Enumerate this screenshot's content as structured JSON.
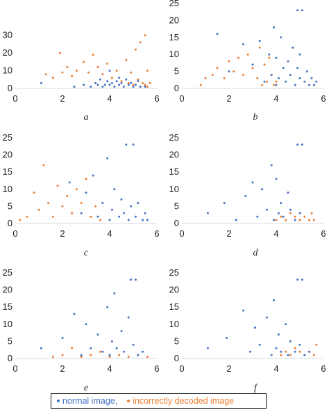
{
  "chart_data": [
    {
      "type": "scatter",
      "panel_label": "a",
      "xlim": [
        0,
        6
      ],
      "ylim": [
        0,
        35
      ],
      "yticks": [
        0,
        10,
        20,
        30
      ],
      "xticks": [
        0,
        2,
        4,
        6
      ],
      "grid": false,
      "series": [
        {
          "name": "normal image,",
          "color": "#4472C4",
          "points": [
            [
              1.1,
              3
            ],
            [
              2.5,
              1
            ],
            [
              2.9,
              2
            ],
            [
              3.2,
              1
            ],
            [
              3.4,
              3
            ],
            [
              3.5,
              2
            ],
            [
              3.6,
              5
            ],
            [
              3.7,
              1
            ],
            [
              3.8,
              2
            ],
            [
              3.9,
              4
            ],
            [
              4.0,
              2
            ],
            [
              4.0,
              10
            ],
            [
              4.1,
              3
            ],
            [
              4.2,
              1
            ],
            [
              4.3,
              4
            ],
            [
              4.4,
              6
            ],
            [
              4.4,
              2
            ],
            [
              4.5,
              3
            ],
            [
              4.6,
              1
            ],
            [
              4.7,
              5
            ],
            [
              4.8,
              2
            ],
            [
              4.9,
              3
            ],
            [
              5.0,
              1
            ],
            [
              5.1,
              2
            ],
            [
              5.2,
              4
            ],
            [
              5.3,
              1
            ],
            [
              5.5,
              1
            ]
          ]
        },
        {
          "name": "incorrectly decoded image",
          "color": "#ED7D31",
          "points": [
            [
              1.3,
              8
            ],
            [
              1.6,
              6
            ],
            [
              1.9,
              20
            ],
            [
              2.0,
              9
            ],
            [
              2.2,
              12
            ],
            [
              2.4,
              7
            ],
            [
              2.6,
              10
            ],
            [
              2.9,
              15
            ],
            [
              3.1,
              9
            ],
            [
              3.3,
              19
            ],
            [
              3.5,
              12
            ],
            [
              3.7,
              8
            ],
            [
              3.9,
              14
            ],
            [
              4.1,
              6
            ],
            [
              4.3,
              10
            ],
            [
              4.5,
              4
            ],
            [
              4.7,
              16
            ],
            [
              4.8,
              3
            ],
            [
              4.9,
              9
            ],
            [
              5.0,
              2
            ],
            [
              5.1,
              22
            ],
            [
              5.2,
              5
            ],
            [
              5.3,
              1
            ],
            [
              5.3,
              26
            ],
            [
              5.4,
              3
            ],
            [
              5.5,
              30
            ],
            [
              5.5,
              2
            ],
            [
              5.6,
              10
            ],
            [
              5.6,
              1
            ],
            [
              5.7,
              3
            ]
          ]
        }
      ]
    },
    {
      "type": "scatter",
      "panel_label": "b",
      "xlim": [
        0,
        6
      ],
      "ylim": [
        0,
        25
      ],
      "yticks": [
        0,
        5,
        10,
        15,
        20,
        25
      ],
      "xticks": [
        0,
        2,
        4,
        6
      ],
      "grid": false,
      "series": [
        {
          "name": "normal image,",
          "color": "#4472C4",
          "points": [
            [
              1.5,
              16
            ],
            [
              2.0,
              5
            ],
            [
              2.6,
              13
            ],
            [
              3.0,
              7
            ],
            [
              3.3,
              14
            ],
            [
              3.5,
              2
            ],
            [
              3.7,
              10
            ],
            [
              3.8,
              4
            ],
            [
              3.9,
              18
            ],
            [
              4.0,
              1
            ],
            [
              4.0,
              9
            ],
            [
              4.1,
              3
            ],
            [
              4.2,
              15
            ],
            [
              4.3,
              6
            ],
            [
              4.4,
              2
            ],
            [
              4.5,
              8
            ],
            [
              4.6,
              4
            ],
            [
              4.7,
              12
            ],
            [
              4.8,
              1
            ],
            [
              4.9,
              6
            ],
            [
              4.9,
              23
            ],
            [
              5.0,
              3
            ],
            [
              5.0,
              10
            ],
            [
              5.1,
              23
            ],
            [
              5.2,
              2
            ],
            [
              5.3,
              5
            ],
            [
              5.4,
              1
            ],
            [
              5.5,
              3
            ],
            [
              5.6,
              1
            ],
            [
              5.7,
              2
            ]
          ]
        },
        {
          "name": "incorrectly decoded image",
          "color": "#ED7D31",
          "points": [
            [
              0.8,
              1
            ],
            [
              1.0,
              3
            ],
            [
              1.3,
              4
            ],
            [
              1.5,
              6
            ],
            [
              1.8,
              3
            ],
            [
              2.0,
              8
            ],
            [
              2.2,
              5
            ],
            [
              2.4,
              9
            ],
            [
              2.6,
              4
            ],
            [
              2.8,
              10
            ],
            [
              3.0,
              6
            ],
            [
              3.2,
              3
            ],
            [
              3.3,
              12
            ],
            [
              3.4,
              1
            ],
            [
              3.5,
              7
            ],
            [
              3.6,
              2
            ],
            [
              3.7,
              9
            ],
            [
              3.8,
              4
            ],
            [
              3.9,
              1
            ],
            [
              4.0,
              2
            ]
          ]
        }
      ]
    },
    {
      "type": "scatter",
      "panel_label": "c",
      "xlim": [
        0,
        6
      ],
      "ylim": [
        0,
        25
      ],
      "yticks": [
        0,
        5,
        10,
        15,
        20,
        25
      ],
      "xticks": [
        0,
        2,
        4,
        6
      ],
      "grid": false,
      "series": [
        {
          "name": "normal image,",
          "color": "#4472C4",
          "points": [
            [
              2.3,
              12
            ],
            [
              2.8,
              3
            ],
            [
              3.0,
              9
            ],
            [
              3.3,
              14
            ],
            [
              3.5,
              2
            ],
            [
              3.7,
              6
            ],
            [
              3.9,
              19
            ],
            [
              4.0,
              1
            ],
            [
              4.1,
              4
            ],
            [
              4.2,
              10
            ],
            [
              4.4,
              2
            ],
            [
              4.5,
              7
            ],
            [
              4.6,
              3
            ],
            [
              4.7,
              23
            ],
            [
              4.8,
              1
            ],
            [
              4.9,
              5
            ],
            [
              5.0,
              23
            ],
            [
              5.1,
              2
            ],
            [
              5.2,
              6
            ],
            [
              5.4,
              1
            ],
            [
              5.5,
              3
            ],
            [
              5.6,
              1
            ]
          ]
        },
        {
          "name": "incorrectly decoded image",
          "color": "#ED7D31",
          "points": [
            [
              0.2,
              1
            ],
            [
              0.5,
              2
            ],
            [
              0.8,
              9
            ],
            [
              1.0,
              4
            ],
            [
              1.2,
              17
            ],
            [
              1.4,
              6
            ],
            [
              1.6,
              2
            ],
            [
              1.8,
              11
            ],
            [
              2.0,
              5
            ],
            [
              2.2,
              8
            ],
            [
              2.4,
              3
            ],
            [
              2.6,
              10
            ],
            [
              2.8,
              6
            ],
            [
              3.0,
              13
            ],
            [
              3.2,
              2
            ],
            [
              3.4,
              5
            ],
            [
              3.6,
              1
            ]
          ]
        }
      ]
    },
    {
      "type": "scatter",
      "panel_label": "d",
      "xlim": [
        0,
        6
      ],
      "ylim": [
        0,
        25
      ],
      "yticks": [
        0,
        5,
        10,
        15,
        20,
        25
      ],
      "xticks": [
        0,
        2,
        4,
        6
      ],
      "grid": false,
      "series": [
        {
          "name": "normal image,",
          "color": "#4472C4",
          "points": [
            [
              1.1,
              3
            ],
            [
              1.8,
              6
            ],
            [
              2.3,
              1
            ],
            [
              2.7,
              8
            ],
            [
              3.0,
              12
            ],
            [
              3.2,
              2
            ],
            [
              3.4,
              10
            ],
            [
              3.6,
              4
            ],
            [
              3.8,
              17
            ],
            [
              3.9,
              1
            ],
            [
              4.0,
              13
            ],
            [
              4.1,
              3
            ],
            [
              4.2,
              6
            ],
            [
              4.3,
              2
            ],
            [
              4.5,
              9
            ],
            [
              4.6,
              4
            ],
            [
              4.8,
              1
            ],
            [
              4.9,
              23
            ],
            [
              5.0,
              3
            ],
            [
              5.1,
              23
            ]
          ]
        },
        {
          "name": "incorrectly decoded image",
          "color": "#ED7D31",
          "points": [
            [
              4.0,
              1
            ],
            [
              4.2,
              2
            ],
            [
              4.4,
              1
            ],
            [
              4.6,
              3
            ],
            [
              4.8,
              2
            ],
            [
              5.0,
              1
            ],
            [
              5.2,
              2
            ],
            [
              5.4,
              1
            ],
            [
              5.5,
              3
            ],
            [
              5.6,
              1
            ]
          ]
        }
      ]
    },
    {
      "type": "scatter",
      "panel_label": "e",
      "xlim": [
        0,
        6
      ],
      "ylim": [
        0,
        25
      ],
      "yticks": [
        0,
        5,
        10,
        15,
        20,
        25
      ],
      "xticks": [
        0,
        2,
        4,
        6
      ],
      "grid": false,
      "series": [
        {
          "name": "normal image,",
          "color": "#4472C4",
          "points": [
            [
              1.1,
              3
            ],
            [
              2.0,
              6
            ],
            [
              2.5,
              13
            ],
            [
              2.8,
              1
            ],
            [
              3.0,
              10
            ],
            [
              3.2,
              3
            ],
            [
              3.5,
              7
            ],
            [
              3.7,
              2
            ],
            [
              3.9,
              15
            ],
            [
              4.0,
              1
            ],
            [
              4.1,
              5
            ],
            [
              4.2,
              19
            ],
            [
              4.3,
              3
            ],
            [
              4.5,
              8
            ],
            [
              4.6,
              2
            ],
            [
              4.8,
              12
            ],
            [
              4.9,
              23
            ],
            [
              5.0,
              4
            ],
            [
              5.1,
              23
            ],
            [
              5.2,
              1
            ],
            [
              5.4,
              2
            ]
          ]
        },
        {
          "name": "incorrectly decoded image",
          "color": "#ED7D31",
          "points": [
            [
              1.6,
              0.5
            ],
            [
              2.0,
              1
            ],
            [
              2.4,
              3
            ],
            [
              2.8,
              0.5
            ],
            [
              3.2,
              1
            ],
            [
              3.6,
              2
            ],
            [
              4.0,
              0.5
            ],
            [
              4.4,
              1
            ],
            [
              4.8,
              0.5
            ],
            [
              5.2,
              1
            ],
            [
              5.6,
              0.5
            ]
          ]
        }
      ]
    },
    {
      "type": "scatter",
      "panel_label": "f",
      "xlim": [
        0,
        6
      ],
      "ylim": [
        0,
        25
      ],
      "yticks": [
        0,
        5,
        10,
        15,
        20,
        25
      ],
      "xticks": [
        0,
        2,
        4,
        6
      ],
      "grid": false,
      "series": [
        {
          "name": "normal image,",
          "color": "#4472C4",
          "points": [
            [
              1.1,
              3
            ],
            [
              1.9,
              6
            ],
            [
              2.6,
              14
            ],
            [
              2.9,
              2
            ],
            [
              3.1,
              9
            ],
            [
              3.3,
              4
            ],
            [
              3.6,
              12
            ],
            [
              3.8,
              1
            ],
            [
              3.9,
              17
            ],
            [
              4.0,
              3
            ],
            [
              4.1,
              7
            ],
            [
              4.2,
              2
            ],
            [
              4.4,
              10
            ],
            [
              4.5,
              1
            ],
            [
              4.6,
              5
            ],
            [
              4.8,
              2
            ],
            [
              4.9,
              23
            ],
            [
              5.0,
              4
            ],
            [
              5.1,
              23
            ],
            [
              5.2,
              1
            ],
            [
              5.4,
              2
            ]
          ]
        },
        {
          "name": "incorrectly decoded image",
          "color": "#ED7D31",
          "points": [
            [
              4.2,
              1
            ],
            [
              4.4,
              2
            ],
            [
              4.6,
              1
            ],
            [
              4.8,
              3
            ],
            [
              5.0,
              2
            ],
            [
              5.2,
              1
            ],
            [
              5.4,
              2
            ],
            [
              5.6,
              1
            ],
            [
              5.7,
              4
            ]
          ]
        }
      ]
    }
  ],
  "legend": {
    "items": [
      {
        "label": "normal image,",
        "color": "#4472C4"
      },
      {
        "label": "incorrectly decoded image",
        "color": "#ED7D31"
      }
    ]
  }
}
